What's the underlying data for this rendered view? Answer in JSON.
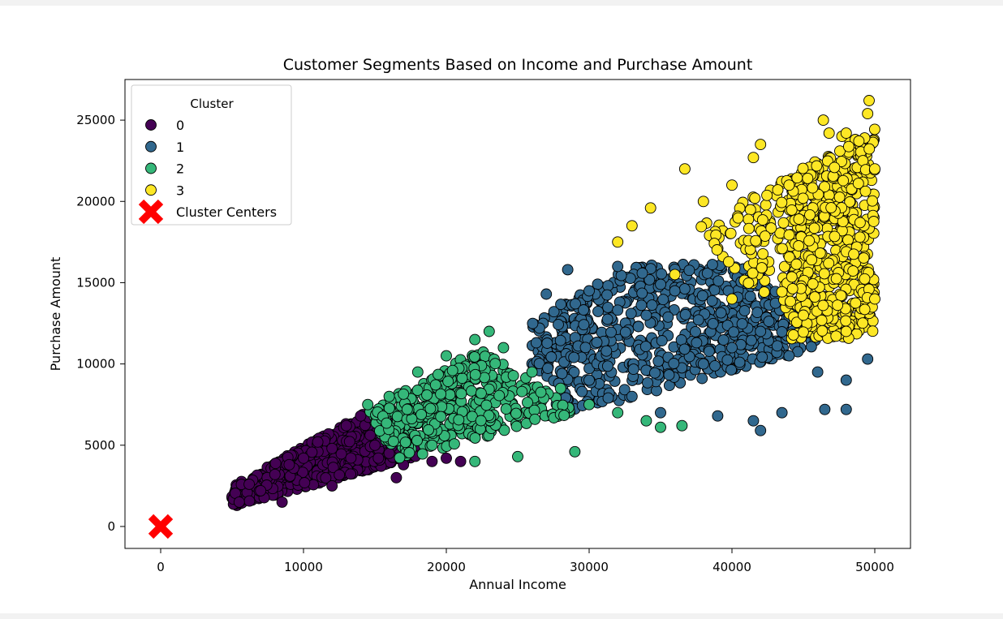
{
  "chart_data": {
    "type": "scatter",
    "title": "Customer Segments Based on Income and Purchase Amount",
    "xlabel": "Annual Income",
    "ylabel": "Purchase Amount",
    "xlim": [
      -2500,
      52500
    ],
    "ylim": [
      -1350,
      27500
    ],
    "xticks": [
      0,
      10000,
      20000,
      30000,
      40000,
      50000
    ],
    "yticks": [
      0,
      5000,
      10000,
      15000,
      20000,
      25000
    ],
    "legend": {
      "title": "Cluster",
      "placement": "upper-left",
      "entries": [
        {
          "label": "0",
          "color": "#440154",
          "marker": "circle"
        },
        {
          "label": "1",
          "color": "#31688e",
          "marker": "circle"
        },
        {
          "label": "2",
          "color": "#35b779",
          "marker": "circle"
        },
        {
          "label": "3",
          "color": "#fde725",
          "marker": "circle"
        },
        {
          "label": "Cluster Centers",
          "color": "#ff0000",
          "marker": "x"
        }
      ]
    },
    "series": [
      {
        "name": "0",
        "color": "#440154",
        "x_range": [
          5000,
          21500
        ],
        "y_range": [
          1200,
          7000
        ],
        "points": [
          [
            5500,
            1500
          ],
          [
            6200,
            2600
          ],
          [
            7000,
            2200
          ],
          [
            8000,
            3200
          ],
          [
            9000,
            3800
          ],
          [
            10000,
            4200
          ],
          [
            11000,
            5200
          ],
          [
            12000,
            4800
          ],
          [
            13000,
            6200
          ],
          [
            14000,
            6800
          ],
          [
            15000,
            5000
          ],
          [
            16000,
            4500
          ],
          [
            17000,
            3800
          ],
          [
            18000,
            5000
          ],
          [
            19000,
            4000
          ],
          [
            20000,
            4200
          ],
          [
            21000,
            4000
          ],
          [
            8500,
            1500
          ],
          [
            12000,
            2500
          ],
          [
            16500,
            3000
          ]
        ]
      },
      {
        "name": "1",
        "color": "#31688e",
        "x_range": [
          26000,
          50000
        ],
        "y_range": [
          5900,
          16200
        ],
        "points": [
          [
            27000,
            14300
          ],
          [
            28500,
            15800
          ],
          [
            30000,
            14500
          ],
          [
            32000,
            16000
          ],
          [
            34000,
            13000
          ],
          [
            36000,
            14500
          ],
          [
            38000,
            10000
          ],
          [
            40000,
            11000
          ],
          [
            42000,
            12000
          ],
          [
            44000,
            10500
          ],
          [
            46000,
            9500
          ],
          [
            48000,
            9000
          ],
          [
            49500,
            10300
          ],
          [
            30000,
            9000
          ],
          [
            33000,
            8000
          ],
          [
            35000,
            7000
          ],
          [
            39000,
            6800
          ],
          [
            41500,
            6500
          ],
          [
            42000,
            5900
          ],
          [
            43500,
            7000
          ],
          [
            46500,
            7200
          ],
          [
            48000,
            7200
          ]
        ]
      },
      {
        "name": "2",
        "color": "#35b779",
        "x_range": [
          14000,
          37000
        ],
        "y_range": [
          4000,
          12000
        ],
        "points": [
          [
            14500,
            7500
          ],
          [
            16000,
            8000
          ],
          [
            18000,
            9500
          ],
          [
            20000,
            10500
          ],
          [
            22000,
            11500
          ],
          [
            23000,
            12000
          ],
          [
            24000,
            11000
          ],
          [
            26000,
            9500
          ],
          [
            28000,
            8500
          ],
          [
            30000,
            7500
          ],
          [
            32000,
            7000
          ],
          [
            34000,
            6500
          ],
          [
            36500,
            6200
          ],
          [
            35000,
            6100
          ],
          [
            29000,
            4600
          ],
          [
            25000,
            4300
          ],
          [
            22000,
            4000
          ],
          [
            19000,
            5000
          ]
        ]
      },
      {
        "name": "3",
        "color": "#fde725",
        "x_range": [
          31000,
          50000
        ],
        "y_range": [
          11500,
          26200
        ],
        "points": [
          [
            32000,
            17500
          ],
          [
            33000,
            18500
          ],
          [
            34300,
            19600
          ],
          [
            36700,
            22000
          ],
          [
            38000,
            20000
          ],
          [
            40000,
            21000
          ],
          [
            41500,
            22700
          ],
          [
            42000,
            23500
          ],
          [
            44000,
            21000
          ],
          [
            46400,
            25000
          ],
          [
            46800,
            24200
          ],
          [
            47700,
            24000
          ],
          [
            48000,
            24200
          ],
          [
            49600,
            26200
          ],
          [
            49500,
            25400
          ],
          [
            50000,
            22000
          ],
          [
            50000,
            14000
          ],
          [
            48000,
            12000
          ],
          [
            45000,
            13000
          ],
          [
            40000,
            14000
          ],
          [
            36000,
            15500
          ]
        ]
      }
    ],
    "cluster_centers": {
      "label": "Cluster Centers",
      "color": "#ff0000",
      "points": [
        [
          0,
          0
        ]
      ]
    }
  }
}
